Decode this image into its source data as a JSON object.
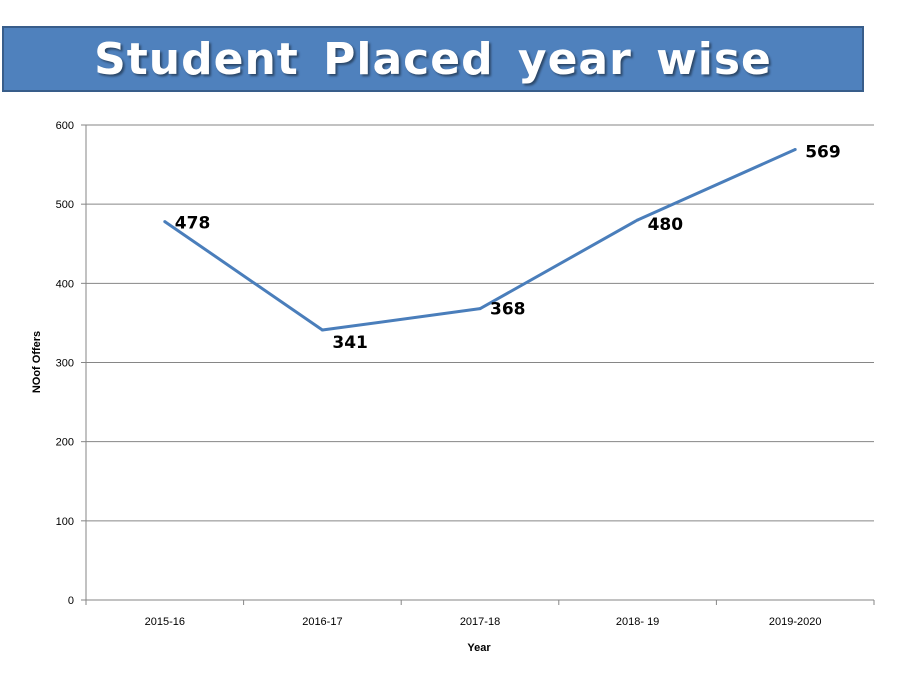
{
  "title": "Student  Placed  year  wise",
  "colors": {
    "banner": "#4f81bd",
    "line": "#4a7ebb",
    "grid": "#868686"
  },
  "chart_data": {
    "type": "line",
    "categories": [
      "2015-16",
      "2016-17",
      "2017-18",
      "2018- 19",
      "2019-2020"
    ],
    "values": [
      478,
      341,
      368,
      480,
      569
    ],
    "data_labels": [
      "478",
      "341",
      "368",
      "480",
      "569"
    ],
    "xlabel": "Year",
    "ylabel": "NOof Offers",
    "ylim": [
      0,
      600
    ],
    "yticks": [
      0,
      100,
      200,
      300,
      400,
      500,
      600
    ],
    "grid": true,
    "legend": "none"
  }
}
